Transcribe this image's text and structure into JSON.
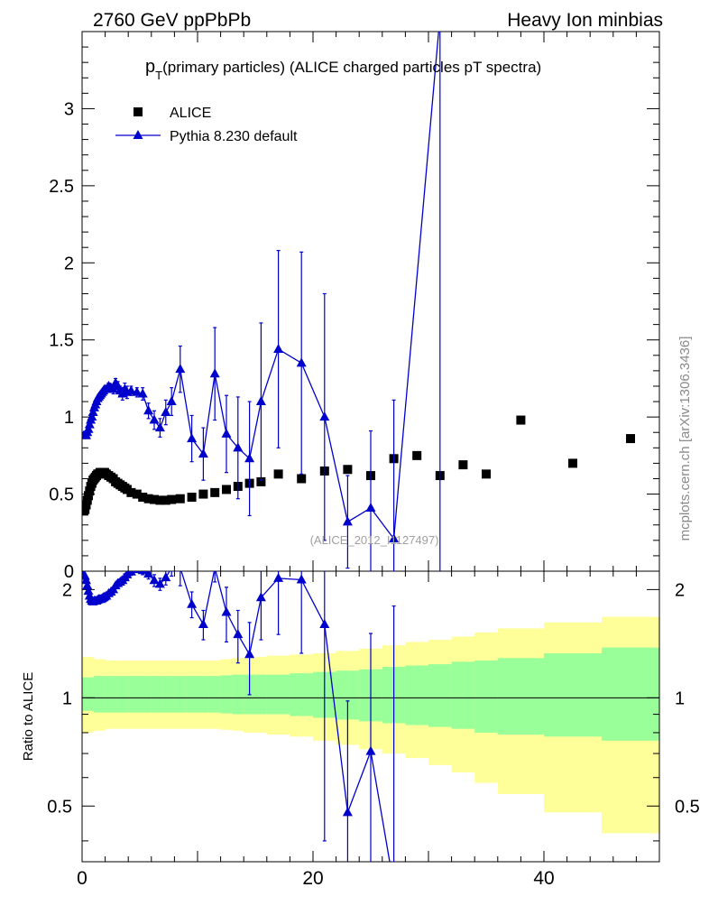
{
  "header": {
    "left": "2760 GeV ppPbPb",
    "right": "Heavy Ion minbias"
  },
  "watermark": "mcplots.cern.ch [arXiv:1306.3436]",
  "chart_data": [
    {
      "type": "scatter",
      "panel": "main",
      "title_symbol": "p",
      "title_sub": "T",
      "title_rest": "(primary particles) (ALICE charged particles pT spectra)",
      "analysis_tag": "(ALICE_2012_I1127497)",
      "xlim": [
        0,
        50
      ],
      "ylim": [
        0,
        3.5
      ],
      "yticks": [
        "0",
        "0.5",
        "1",
        "1.5",
        "2",
        "2.5",
        "3"
      ],
      "legend_position": "top-left",
      "series": [
        {
          "name": "ALICE",
          "marker": "square",
          "color": "#000000",
          "x": [
            0.15,
            0.25,
            0.35,
            0.45,
            0.55,
            0.65,
            0.75,
            0.85,
            0.95,
            1.05,
            1.15,
            1.25,
            1.35,
            1.45,
            1.55,
            1.65,
            1.75,
            1.85,
            1.95,
            2.1,
            2.3,
            2.5,
            2.7,
            2.9,
            3.1,
            3.3,
            3.5,
            3.7,
            3.9,
            4.25,
            4.75,
            5.25,
            5.75,
            6.25,
            6.75,
            7.25,
            7.75,
            8.5,
            9.5,
            10.5,
            11.5,
            12.5,
            13.5,
            14.5,
            15.5,
            17,
            19,
            21,
            23,
            25,
            27,
            29,
            31,
            33,
            35,
            38,
            42.5,
            47.5
          ],
          "y": [
            0.39,
            0.4,
            0.43,
            0.46,
            0.49,
            0.52,
            0.55,
            0.57,
            0.59,
            0.6,
            0.61,
            0.62,
            0.63,
            0.63,
            0.64,
            0.64,
            0.64,
            0.64,
            0.64,
            0.63,
            0.62,
            0.61,
            0.6,
            0.58,
            0.57,
            0.56,
            0.55,
            0.54,
            0.53,
            0.51,
            0.5,
            0.48,
            0.47,
            0.465,
            0.46,
            0.46,
            0.465,
            0.47,
            0.48,
            0.5,
            0.51,
            0.53,
            0.55,
            0.57,
            0.58,
            0.63,
            0.6,
            0.65,
            0.66,
            0.62,
            0.73,
            0.75,
            0.62,
            0.69,
            0.63,
            0.98,
            0.7,
            0.86
          ]
        },
        {
          "name": "Pythia 8.230 default",
          "marker": "triangle",
          "color": "#0000cc",
          "x": [
            0.15,
            0.25,
            0.35,
            0.45,
            0.55,
            0.65,
            0.75,
            0.85,
            0.95,
            1.05,
            1.15,
            1.25,
            1.35,
            1.45,
            1.55,
            1.65,
            1.75,
            1.85,
            1.95,
            2.1,
            2.3,
            2.5,
            2.7,
            2.9,
            3.1,
            3.3,
            3.5,
            3.7,
            3.9,
            4.25,
            4.75,
            5.25,
            5.75,
            6.25,
            6.75,
            7.25,
            7.75,
            8.5,
            9.5,
            10.5,
            11.5,
            12.5,
            13.5,
            14.5,
            15.5,
            17,
            19,
            21,
            23,
            25,
            27,
            31
          ],
          "y": [
            0.88,
            0.88,
            0.88,
            0.9,
            0.92,
            0.95,
            0.98,
            1.0,
            1.03,
            1.06,
            1.08,
            1.1,
            1.12,
            1.13,
            1.14,
            1.15,
            1.16,
            1.17,
            1.18,
            1.18,
            1.2,
            1.19,
            1.18,
            1.22,
            1.2,
            1.17,
            1.15,
            1.18,
            1.16,
            1.17,
            1.16,
            1.15,
            1.04,
            0.98,
            0.93,
            1.03,
            1.1,
            1.31,
            0.86,
            0.76,
            1.28,
            0.89,
            0.8,
            0.73,
            1.1,
            1.44,
            1.35,
            1.0,
            0.32,
            0.41,
            0.21,
            3.6
          ],
          "yerr": [
            0.004,
            0.004,
            0.004,
            0.004,
            0.004,
            0.005,
            0.005,
            0.005,
            0.006,
            0.006,
            0.006,
            0.006,
            0.007,
            0.007,
            0.007,
            0.008,
            0.008,
            0.008,
            0.009,
            0.01,
            0.02,
            0.02,
            0.03,
            0.03,
            0.03,
            0.03,
            0.04,
            0.04,
            0.04,
            0.03,
            0.03,
            0.04,
            0.05,
            0.06,
            0.06,
            0.08,
            0.09,
            0.15,
            0.15,
            0.17,
            0.3,
            0.25,
            0.33,
            0.37,
            0.51,
            0.64,
            0.72,
            0.8,
            0.3,
            0.5,
            0.9,
            4.0
          ]
        }
      ]
    },
    {
      "type": "scatter",
      "panel": "ratio",
      "ylabel": "Ratio to ALICE",
      "xlim": [
        0,
        50
      ],
      "ylim": [
        0.35,
        2.25
      ],
      "xticks": [
        "0",
        "20",
        "40"
      ],
      "yticks": [
        "0.5",
        "1",
        "2"
      ],
      "reference_line": 1,
      "bands": {
        "inner_color": "#99ff99",
        "outer_color": "#ffff99",
        "edges": [
          0,
          1,
          2,
          3,
          4,
          5,
          6,
          7,
          8,
          9,
          10,
          11,
          12,
          13,
          14,
          15,
          16,
          18,
          20,
          22,
          24,
          26,
          28,
          30,
          32,
          34,
          36,
          40,
          45,
          50
        ],
        "inner_lo": [
          0.92,
          0.91,
          0.91,
          0.91,
          0.91,
          0.91,
          0.91,
          0.91,
          0.91,
          0.91,
          0.91,
          0.91,
          0.905,
          0.9,
          0.9,
          0.9,
          0.9,
          0.89,
          0.88,
          0.87,
          0.86,
          0.85,
          0.84,
          0.83,
          0.82,
          0.8,
          0.79,
          0.78,
          0.76,
          0.74
        ],
        "inner_hi": [
          1.14,
          1.15,
          1.15,
          1.15,
          1.15,
          1.15,
          1.15,
          1.15,
          1.15,
          1.15,
          1.15,
          1.15,
          1.155,
          1.16,
          1.16,
          1.16,
          1.16,
          1.17,
          1.18,
          1.19,
          1.2,
          1.22,
          1.23,
          1.24,
          1.26,
          1.27,
          1.29,
          1.33,
          1.38,
          1.4
        ],
        "outer_lo": [
          0.8,
          0.81,
          0.82,
          0.82,
          0.82,
          0.82,
          0.82,
          0.82,
          0.82,
          0.82,
          0.82,
          0.82,
          0.815,
          0.81,
          0.8,
          0.8,
          0.79,
          0.78,
          0.76,
          0.74,
          0.72,
          0.7,
          0.68,
          0.65,
          0.62,
          0.58,
          0.54,
          0.48,
          0.42,
          0.36
        ],
        "outer_hi": [
          1.3,
          1.28,
          1.27,
          1.27,
          1.27,
          1.27,
          1.27,
          1.27,
          1.27,
          1.27,
          1.27,
          1.27,
          1.28,
          1.29,
          1.29,
          1.3,
          1.31,
          1.32,
          1.33,
          1.35,
          1.37,
          1.4,
          1.43,
          1.45,
          1.48,
          1.52,
          1.56,
          1.62,
          1.68,
          1.72
        ]
      },
      "series": [
        {
          "name": "Pythia 8.230 default",
          "marker": "triangle",
          "color": "#0000cc",
          "x": [
            0.15,
            0.25,
            0.35,
            0.45,
            0.55,
            0.65,
            0.75,
            0.85,
            0.95,
            1.05,
            1.15,
            1.25,
            1.35,
            1.45,
            1.55,
            1.65,
            1.75,
            1.85,
            1.95,
            2.1,
            2.3,
            2.5,
            2.7,
            2.9,
            3.1,
            3.3,
            3.5,
            3.7,
            3.9,
            4.25,
            4.75,
            5.25,
            5.75,
            6.25,
            6.75,
            7.25,
            7.75,
            8.5,
            9.5,
            10.5,
            11.5,
            12.5,
            13.5,
            14.5,
            15.5,
            17,
            19,
            21,
            23,
            25,
            27
          ],
          "y": [
            2.2,
            2.18,
            2.12,
            2.05,
            1.98,
            1.92,
            1.88,
            1.86,
            1.85,
            1.86,
            1.86,
            1.86,
            1.87,
            1.88,
            1.88,
            1.88,
            1.89,
            1.9,
            1.91,
            1.92,
            1.95,
            1.97,
            2.0,
            2.05,
            2.08,
            2.1,
            2.12,
            2.16,
            2.2,
            2.24,
            2.28,
            2.26,
            2.21,
            2.12,
            2.07,
            2.16,
            2.3,
            2.3,
            1.82,
            1.6,
            2.3,
            1.73,
            1.5,
            1.32,
            1.9,
            2.15,
            2.13,
            1.6,
            0.48,
            0.71,
            0.3
          ],
          "yerr": [
            0.01,
            0.01,
            0.01,
            0.01,
            0.01,
            0.01,
            0.01,
            0.01,
            0.01,
            0.01,
            0.01,
            0.01,
            0.01,
            0.01,
            0.01,
            0.01,
            0.01,
            0.01,
            0.01,
            0.02,
            0.02,
            0.03,
            0.03,
            0.03,
            0.04,
            0.04,
            0.05,
            0.05,
            0.06,
            0.05,
            0.05,
            0.06,
            0.07,
            0.08,
            0.08,
            0.1,
            0.12,
            0.25,
            0.15,
            0.15,
            0.2,
            0.3,
            0.25,
            0.3,
            0.45,
            0.65,
            0.8,
            1.2,
            0.5,
            0.8,
            1.5
          ]
        }
      ]
    }
  ]
}
